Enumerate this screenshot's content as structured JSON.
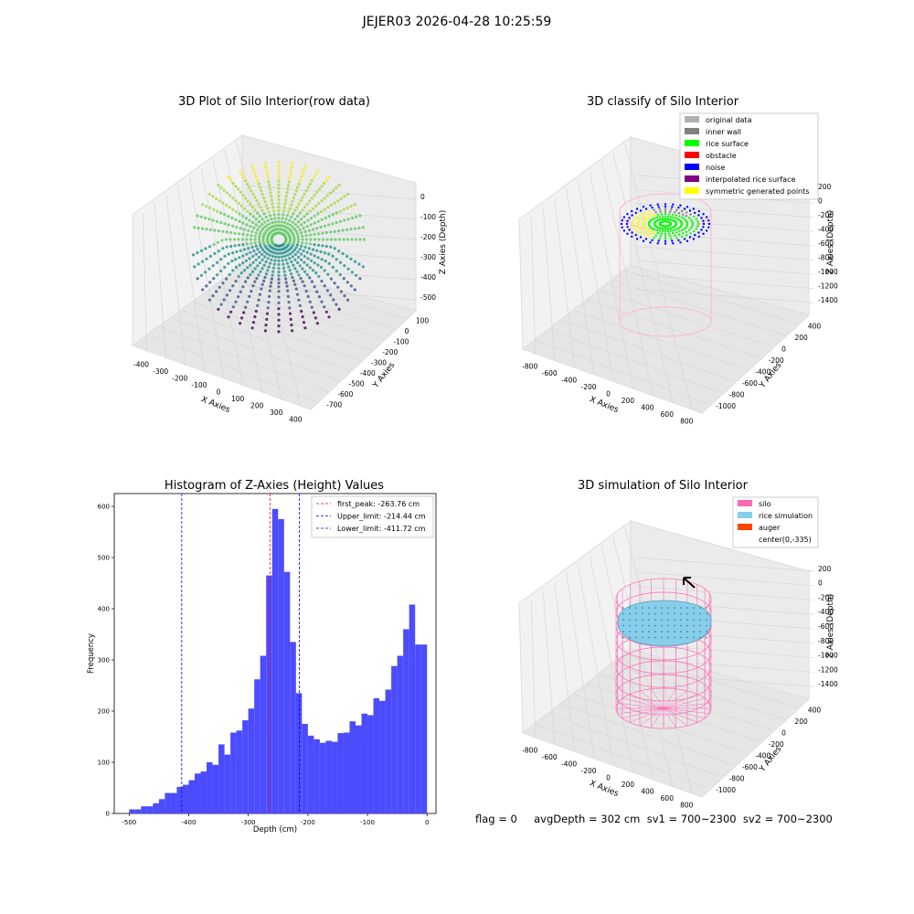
{
  "figure_title": "JEJER03 2026-04-28 10:25:59",
  "footer_text": "flag = 0     avgDepth = 302 cm  sv1 = 700~2300  sv2 = 700~2300",
  "chart_data": [
    {
      "type": "scatter",
      "projection": "3d",
      "title": "3D Plot of Silo Interior(row data)",
      "xlabel": "X Axies",
      "ylabel": "Y Axies",
      "zlabel": "Z Axies (Depth)",
      "x_ticks": [
        "-400",
        "-300",
        "-200",
        "-100",
        "0",
        "100",
        "200",
        "300",
        "400"
      ],
      "y_ticks": [
        "-700",
        "-600",
        "-500",
        "-400",
        "-300",
        "-200",
        "-100",
        "0",
        "100"
      ],
      "z_ticks": [
        "-500",
        "-400",
        "-300",
        "-200",
        "-100",
        "0"
      ],
      "xlim": [
        -420,
        420
      ],
      "ylim": [
        -720,
        110
      ],
      "zlim": [
        -520,
        10
      ],
      "colormap": "viridis by depth",
      "grid": true
    },
    {
      "type": "scatter",
      "projection": "3d",
      "title": "3D classify of Silo Interior",
      "xlabel": "X Axies",
      "ylabel": "Y Axies",
      "zlabel": "Z Axies (Depth)",
      "x_ticks": [
        "-800",
        "-600",
        "-400",
        "-200",
        "0",
        "200",
        "400",
        "600",
        "800"
      ],
      "y_ticks": [
        "-1000",
        "-800",
        "-600",
        "-400",
        "-200",
        "0",
        "200",
        "400"
      ],
      "z_ticks": [
        "-1400",
        "-1200",
        "-1000",
        "-800",
        "-600",
        "-400",
        "-200",
        "0",
        "200"
      ],
      "legend_position": "top-right",
      "legend": [
        {
          "label": "original data",
          "color": "#b0b0b0"
        },
        {
          "label": "inner wall",
          "color": "#808080"
        },
        {
          "label": "rice surface",
          "color": "#00ff00"
        },
        {
          "label": "obstacle",
          "color": "#ff0000"
        },
        {
          "label": "noise",
          "color": "#0000ff"
        },
        {
          "label": "interpolated rice surface",
          "color": "#800080"
        },
        {
          "label": "symmetric generated points",
          "color": "#ffff00"
        }
      ],
      "grid": true
    },
    {
      "type": "bar",
      "title": "Histogram of Z-Axies (Height) Values",
      "xlabel": "Depth (cm)",
      "ylabel": "Frequency",
      "x_ticks": [
        -500,
        -400,
        -300,
        -200,
        -100,
        0
      ],
      "y_ticks": [
        0,
        100,
        200,
        300,
        400,
        500,
        600
      ],
      "xlim": [
        -525,
        15
      ],
      "ylim": [
        0,
        625
      ],
      "bar_color": "#4b4bff",
      "bin_width": 10,
      "bin_left_edges": [
        -500,
        -490,
        -480,
        -470,
        -460,
        -450,
        -440,
        -430,
        -420,
        -410,
        -400,
        -390,
        -380,
        -370,
        -360,
        -350,
        -340,
        -330,
        -320,
        -310,
        -300,
        -290,
        -280,
        -270,
        -260,
        -250,
        -240,
        -230,
        -220,
        -210,
        -200,
        -190,
        -180,
        -170,
        -160,
        -150,
        -140,
        -130,
        -120,
        -110,
        -100,
        -90,
        -80,
        -70,
        -60,
        -50,
        -40,
        -30,
        -20,
        -10
      ],
      "values": [
        8,
        8,
        14,
        14,
        20,
        28,
        40,
        40,
        52,
        56,
        65,
        78,
        82,
        100,
        95,
        135,
        115,
        158,
        162,
        182,
        205,
        262,
        308,
        465,
        595,
        575,
        472,
        335,
        235,
        175,
        152,
        145,
        138,
        142,
        140,
        157,
        158,
        180,
        172,
        195,
        192,
        225,
        220,
        242,
        288,
        308,
        360,
        408,
        330,
        330
      ],
      "reference_lines": [
        {
          "label": "first_peak: -263.76 cm",
          "x": -263.76,
          "color": "#ff0000"
        },
        {
          "label": "Upper_limit: -214.44 cm",
          "x": -214.44,
          "color": "#0000ff"
        },
        {
          "label": "Lower_limit: -411.72 cm",
          "x": -411.72,
          "color": "#0000ff"
        }
      ],
      "legend_position": "top-right",
      "grid": false
    },
    {
      "type": "scatter",
      "projection": "3d",
      "title": "3D simulation of Silo Interior",
      "xlabel": "X Axies",
      "ylabel": "Y Axies",
      "zlabel": "Z Axies (Depth)",
      "x_ticks": [
        "-800",
        "-600",
        "-400",
        "-200",
        "0",
        "200",
        "400",
        "600",
        "800"
      ],
      "y_ticks": [
        "-1000",
        "-800",
        "-600",
        "-400",
        "-200",
        "0",
        "200",
        "400"
      ],
      "z_ticks": [
        "-1400",
        "-1200",
        "-1000",
        "-800",
        "-600",
        "-400",
        "-200",
        "0",
        "200"
      ],
      "legend_position": "top-right",
      "legend": [
        {
          "label": "silo",
          "color": "#ff69b4"
        },
        {
          "label": "rice simulation",
          "color": "#87ceeb"
        },
        {
          "label": "auger",
          "color": "#ff4500"
        },
        {
          "label": "center(0,-335)",
          "color": "none"
        }
      ],
      "grid": true
    }
  ]
}
